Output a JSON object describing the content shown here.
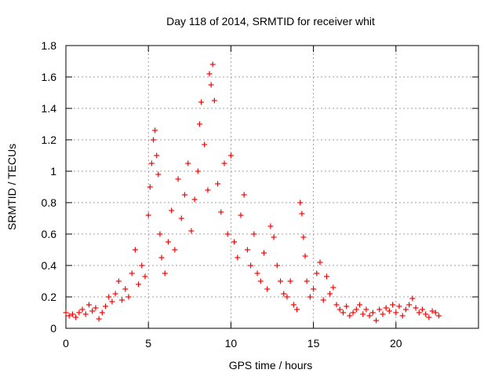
{
  "chart_data": {
    "type": "scatter",
    "title": "Day 118 of 2014, SRMTID for receiver whit",
    "xlabel": "GPS time / hours",
    "ylabel": "SRMTID / TECUs",
    "xlim": [
      0,
      25
    ],
    "ylim": [
      0,
      1.8
    ],
    "xticks": [
      0,
      5,
      10,
      15,
      20
    ],
    "yticks": [
      0,
      0.2,
      0.4,
      0.6,
      0.8,
      1,
      1.2,
      1.4,
      1.6,
      1.8
    ],
    "xtick_labels": [
      "0",
      "5",
      "10",
      "15",
      "20"
    ],
    "ytick_labels": [
      "0",
      "0.2",
      "0.4",
      "0.6",
      "0.8",
      "1",
      "1.2",
      "1.4",
      "1.6",
      "1.8"
    ],
    "grid": true,
    "marker": "+",
    "marker_color": "#ff0000",
    "series": [
      {
        "name": "SRMTID",
        "points": [
          [
            0.0,
            0.1
          ],
          [
            0.2,
            0.08
          ],
          [
            0.4,
            0.09
          ],
          [
            0.6,
            0.07
          ],
          [
            0.8,
            0.1
          ],
          [
            1.0,
            0.12
          ],
          [
            1.2,
            0.09
          ],
          [
            1.4,
            0.15
          ],
          [
            1.6,
            0.11
          ],
          [
            1.8,
            0.13
          ],
          [
            2.0,
            0.06
          ],
          [
            2.2,
            0.1
          ],
          [
            2.4,
            0.14
          ],
          [
            2.6,
            0.2
          ],
          [
            2.8,
            0.17
          ],
          [
            3.0,
            0.22
          ],
          [
            3.2,
            0.3
          ],
          [
            3.4,
            0.18
          ],
          [
            3.6,
            0.25
          ],
          [
            3.8,
            0.2
          ],
          [
            4.0,
            0.35
          ],
          [
            4.2,
            0.5
          ],
          [
            4.4,
            0.28
          ],
          [
            4.6,
            0.4
          ],
          [
            4.8,
            0.33
          ],
          [
            5.0,
            0.72
          ],
          [
            5.1,
            0.9
          ],
          [
            5.2,
            1.05
          ],
          [
            5.3,
            1.2
          ],
          [
            5.4,
            1.26
          ],
          [
            5.5,
            1.1
          ],
          [
            5.6,
            0.98
          ],
          [
            5.7,
            0.6
          ],
          [
            5.8,
            0.45
          ],
          [
            6.0,
            0.35
          ],
          [
            6.2,
            0.55
          ],
          [
            6.4,
            0.75
          ],
          [
            6.6,
            0.5
          ],
          [
            6.8,
            0.95
          ],
          [
            7.0,
            0.7
          ],
          [
            7.2,
            0.85
          ],
          [
            7.4,
            1.05
          ],
          [
            7.6,
            0.62
          ],
          [
            7.8,
            0.82
          ],
          [
            8.0,
            1.0
          ],
          [
            8.1,
            1.3
          ],
          [
            8.2,
            1.44
          ],
          [
            8.4,
            1.17
          ],
          [
            8.6,
            0.88
          ],
          [
            8.7,
            1.62
          ],
          [
            8.8,
            1.55
          ],
          [
            8.9,
            1.68
          ],
          [
            9.0,
            1.45
          ],
          [
            9.2,
            0.92
          ],
          [
            9.4,
            0.74
          ],
          [
            9.6,
            1.05
          ],
          [
            9.8,
            0.6
          ],
          [
            10.0,
            1.1
          ],
          [
            10.2,
            0.55
          ],
          [
            10.4,
            0.45
          ],
          [
            10.6,
            0.72
          ],
          [
            10.8,
            0.85
          ],
          [
            11.0,
            0.5
          ],
          [
            11.2,
            0.4
          ],
          [
            11.4,
            0.6
          ],
          [
            11.6,
            0.35
          ],
          [
            11.8,
            0.3
          ],
          [
            12.0,
            0.48
          ],
          [
            12.2,
            0.25
          ],
          [
            12.4,
            0.65
          ],
          [
            12.6,
            0.58
          ],
          [
            12.8,
            0.4
          ],
          [
            13.0,
            0.3
          ],
          [
            13.2,
            0.22
          ],
          [
            13.4,
            0.2
          ],
          [
            13.6,
            0.3
          ],
          [
            13.8,
            0.15
          ],
          [
            14.0,
            0.12
          ],
          [
            14.2,
            0.8
          ],
          [
            14.3,
            0.73
          ],
          [
            14.4,
            0.58
          ],
          [
            14.5,
            0.46
          ],
          [
            14.6,
            0.3
          ],
          [
            14.8,
            0.2
          ],
          [
            15.0,
            0.25
          ],
          [
            15.2,
            0.35
          ],
          [
            15.4,
            0.42
          ],
          [
            15.6,
            0.18
          ],
          [
            15.8,
            0.33
          ],
          [
            16.0,
            0.22
          ],
          [
            16.2,
            0.26
          ],
          [
            16.4,
            0.15
          ],
          [
            16.6,
            0.12
          ],
          [
            16.8,
            0.1
          ],
          [
            17.0,
            0.14
          ],
          [
            17.2,
            0.08
          ],
          [
            17.4,
            0.1
          ],
          [
            17.6,
            0.12
          ],
          [
            17.8,
            0.15
          ],
          [
            18.0,
            0.09
          ],
          [
            18.2,
            0.12
          ],
          [
            18.4,
            0.08
          ],
          [
            18.6,
            0.1
          ],
          [
            18.8,
            0.05
          ],
          [
            19.0,
            0.12
          ],
          [
            19.2,
            0.09
          ],
          [
            19.4,
            0.13
          ],
          [
            19.6,
            0.11
          ],
          [
            19.8,
            0.15
          ],
          [
            20.0,
            0.1
          ],
          [
            20.2,
            0.14
          ],
          [
            20.4,
            0.08
          ],
          [
            20.6,
            0.12
          ],
          [
            20.8,
            0.15
          ],
          [
            21.0,
            0.19
          ],
          [
            21.2,
            0.13
          ],
          [
            21.4,
            0.1
          ],
          [
            21.6,
            0.12
          ],
          [
            21.8,
            0.09
          ],
          [
            22.0,
            0.07
          ],
          [
            22.2,
            0.11
          ],
          [
            22.4,
            0.1
          ],
          [
            22.6,
            0.08
          ]
        ]
      }
    ]
  }
}
